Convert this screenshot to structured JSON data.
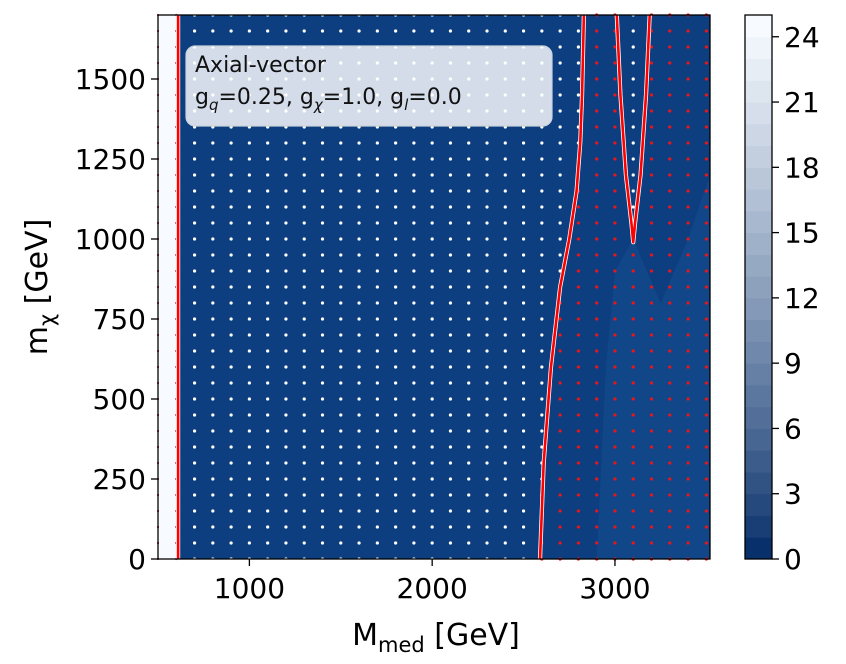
{
  "chart_data": {
    "type": "heatmap",
    "xlabel_main": "M",
    "xlabel_sub": "med",
    "xlabel_unit": " [GeV]",
    "ylabel_main": "m",
    "ylabel_sub": "χ",
    "ylabel_unit": " [GeV]",
    "xlim": [
      500,
      3520
    ],
    "ylim": [
      0,
      1700
    ],
    "xticks": [
      1000,
      2000,
      3000
    ],
    "yticks": [
      0,
      250,
      500,
      750,
      1000,
      1250,
      1500
    ],
    "xtick_labels": [
      "1000",
      "2000",
      "3000"
    ],
    "ytick_labels": [
      "0",
      "250",
      "500",
      "750",
      "1000",
      "1250",
      "1500"
    ],
    "colorbar": {
      "range": [
        0,
        25
      ],
      "ticks": [
        0,
        3,
        6,
        9,
        12,
        15,
        18,
        21,
        24
      ],
      "tick_labels": [
        "0",
        "3",
        "6",
        "9",
        "12",
        "15",
        "18",
        "21",
        "24"
      ],
      "levels": 25,
      "colormap": "Blues_r"
    },
    "annotation": {
      "line1": "Axial-vector",
      "line2_parts": [
        "g",
        "q",
        "=0.25, g",
        "χ",
        "=1.0, g",
        "l",
        "=0.0"
      ]
    },
    "scan_points": {
      "x_start": 700,
      "x_step": 100,
      "x_end": 3500,
      "y_start": 0,
      "y_step": 50,
      "y_end": 1700,
      "excluded_color": "#ffffff",
      "allowed_color": "#e8161b"
    },
    "exclusion_contours": [
      {
        "name": "left-contour",
        "points": [
          [
            610,
            0
          ],
          [
            610,
            1700
          ]
        ]
      },
      {
        "name": "right-contour",
        "points": [
          [
            2590,
            0
          ],
          [
            2610,
            300
          ],
          [
            2650,
            600
          ],
          [
            2700,
            850
          ],
          [
            2750,
            1000
          ],
          [
            2790,
            1150
          ],
          [
            2810,
            1300
          ],
          [
            2820,
            1450
          ],
          [
            2830,
            1700
          ]
        ]
      },
      {
        "name": "notch-contour",
        "points": [
          [
            3010,
            1700
          ],
          [
            3030,
            1450
          ],
          [
            3060,
            1200
          ],
          [
            3090,
            1050
          ],
          [
            3100,
            990
          ],
          [
            3110,
            1050
          ],
          [
            3140,
            1200
          ],
          [
            3170,
            1450
          ],
          [
            3190,
            1700
          ]
        ]
      }
    ],
    "colors": {
      "background_fill": "#0c3e80",
      "excluded_strip": "#f7fbff",
      "contour": "#ff0000",
      "colorbar_low": "#08306b",
      "colorbar_high": "#f7fbff"
    }
  }
}
